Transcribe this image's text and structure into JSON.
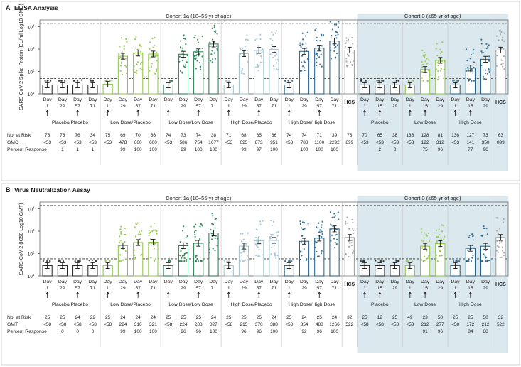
{
  "figure": {
    "border_color": "#d9d9d9",
    "cohort3_shade": "#dbe8ee",
    "cohort1_shade": "#eef4f7"
  },
  "chart_data": [
    {
      "type": "bar",
      "panel_letter": "A",
      "title": "ELISA Analysis",
      "ylabel": "SARS-CoV-2 Spike Protein (EU/ml Log10 GMC)",
      "yscale": "log",
      "ylim": [
        10,
        20000
      ],
      "yticks": [
        {
          "v": 10,
          "label": "10"
        },
        {
          "v": 100,
          "label": "10"
        },
        {
          "v": 1000,
          "label": "10"
        },
        {
          "v": 10000,
          "label": "10"
        }
      ],
      "ytick_exp": [
        "1",
        "2",
        "3",
        "4"
      ],
      "ref_lines": [
        14000,
        48
      ],
      "cohorts": [
        {
          "label": "Cohort 1a (18–55 yr of age)",
          "from": 0,
          "to": 20
        },
        {
          "label": "Cohort 3 (≥65 yr of age)",
          "from": 21,
          "to": 30
        }
      ],
      "groups": [
        {
          "label": "Placebo/Placebo",
          "from": 0,
          "to": 3,
          "color": "#222222",
          "fill": "#ffffff"
        },
        {
          "label": "Low Dose/Placebo",
          "from": 4,
          "to": 7,
          "color": "#8cc63f",
          "fill": "#ffffff"
        },
        {
          "label": "Low Dose/Low Dose",
          "from": 8,
          "to": 11,
          "color": "#1b7a4a",
          "fill": "#ffffff"
        },
        {
          "label": "High Dose/Placebo",
          "from": 12,
          "to": 15,
          "color": "#9dbfcf",
          "fill": "#ffffff"
        },
        {
          "label": "High Dose/High Dose",
          "from": 16,
          "to": 19,
          "color": "#1a5e86",
          "fill": "#ffffff"
        },
        {
          "label": "",
          "from": 20,
          "to": 20,
          "color": "#9a9a9a",
          "fill": "#ffffff"
        },
        {
          "label": "Placebo",
          "from": 21,
          "to": 23,
          "color": "#222222",
          "fill": "#ffffff"
        },
        {
          "label": "Low Dose",
          "from": 24,
          "to": 26,
          "color": "#8cc63f",
          "fill": "#ffffff"
        },
        {
          "label": "High Dose",
          "from": 27,
          "to": 29,
          "color": "#1a5e86",
          "fill": "#ffffff"
        },
        {
          "label": "",
          "from": 30,
          "to": 30,
          "color": "#9a9a9a",
          "fill": "#ffffff"
        }
      ],
      "x_day_word": "Day",
      "categories": [
        "1",
        "29",
        "57",
        "71",
        "1",
        "29",
        "57",
        "71",
        "1",
        "29",
        "57",
        "71",
        "1",
        "29",
        "57",
        "71",
        "1",
        "29",
        "57",
        "71",
        "HCS",
        "1",
        "15",
        "29",
        "1",
        "15",
        "29",
        "1",
        "15",
        "29",
        "HCS"
      ],
      "arrows": [
        0,
        2,
        4,
        6,
        8,
        10,
        12,
        14,
        16,
        18,
        21,
        22,
        24,
        25,
        27,
        28
      ],
      "values": [
        25,
        25,
        25,
        25,
        27,
        478,
        660,
        600,
        25,
        586,
        754,
        1677,
        25,
        625,
        873,
        951,
        25,
        788,
        1100,
        2292,
        899,
        25,
        25,
        25,
        25,
        122,
        312,
        25,
        141,
        350,
        899
      ],
      "row_labels": [
        "No. at Risk",
        "GMC",
        "Percent Response"
      ],
      "at_risk": [
        "76",
        "73",
        "76",
        "34",
        "75",
        "69",
        "70",
        "36",
        "74",
        "73",
        "74",
        "38",
        "71",
        "68",
        "65",
        "36",
        "74",
        "74",
        "71",
        "39",
        "76",
        "70",
        "65",
        "38",
        "136",
        "128",
        "81",
        "136",
        "127",
        "73",
        "63"
      ],
      "gmc": [
        "<53",
        "<53",
        "<53",
        "<53",
        "<53",
        "478",
        "660",
        "600",
        "<53",
        "586",
        "754",
        "1677",
        "<53",
        "625",
        "873",
        "951",
        "<53",
        "788",
        "1100",
        "2292",
        "899",
        "<53",
        "<53",
        "<53",
        "<53",
        "122",
        "312",
        "<53",
        "141",
        "350",
        "899"
      ],
      "percent_response": [
        "",
        "1",
        "1",
        "1",
        "",
        "99",
        "100",
        "100",
        "",
        "99",
        "100",
        "100",
        "",
        "99",
        "97",
        "100",
        "",
        "100",
        "100",
        "100",
        "",
        "",
        "2",
        "0",
        "",
        "75",
        "96",
        "",
        "77",
        "96",
        ""
      ]
    },
    {
      "type": "bar",
      "panel_letter": "B",
      "title": "Virus Neutralization Assay",
      "ylabel": "SARS-CoV-2 (IC50 Log10 GMT)",
      "yscale": "log",
      "ylim": [
        10,
        20000
      ],
      "yticks": [
        {
          "v": 10,
          "label": "10"
        },
        {
          "v": 100,
          "label": "10"
        },
        {
          "v": 1000,
          "label": "10"
        },
        {
          "v": 10000,
          "label": "10"
        }
      ],
      "ytick_exp": [
        "1",
        "2",
        "3",
        "4"
      ],
      "ref_lines": [
        14000,
        58
      ],
      "cohorts": [
        {
          "label": "Cohort 1a (18–55 yr of age)",
          "from": 0,
          "to": 20
        },
        {
          "label": "Cohort 3 (≥65 yr of age)",
          "from": 21,
          "to": 30
        }
      ],
      "groups": [
        {
          "label": "Placebo/Placebo",
          "from": 0,
          "to": 3,
          "color": "#222222",
          "fill": "#ffffff"
        },
        {
          "label": "Low Dose/Placebo",
          "from": 4,
          "to": 7,
          "color": "#8cc63f",
          "fill": "#ffffff"
        },
        {
          "label": "Low Dose/Low Dose",
          "from": 8,
          "to": 11,
          "color": "#1b7a4a",
          "fill": "#ffffff"
        },
        {
          "label": "High Dose/Placebo",
          "from": 12,
          "to": 15,
          "color": "#9dbfcf",
          "fill": "#ffffff"
        },
        {
          "label": "High Dose/High Dose",
          "from": 16,
          "to": 19,
          "color": "#1a5e86",
          "fill": "#ffffff"
        },
        {
          "label": "",
          "from": 20,
          "to": 20,
          "color": "#9a9a9a",
          "fill": "#ffffff"
        },
        {
          "label": "Placebo",
          "from": 21,
          "to": 23,
          "color": "#222222",
          "fill": "#ffffff"
        },
        {
          "label": "Low Dose",
          "from": 24,
          "to": 26,
          "color": "#8cc63f",
          "fill": "#ffffff"
        },
        {
          "label": "High Dose",
          "from": 27,
          "to": 29,
          "color": "#1a5e86",
          "fill": "#ffffff"
        },
        {
          "label": "",
          "from": 30,
          "to": 30,
          "color": "#9a9a9a",
          "fill": "#ffffff"
        }
      ],
      "x_day_word": "Day",
      "categories": [
        "1",
        "29",
        "57",
        "71",
        "1",
        "29",
        "57",
        "71",
        "1",
        "29",
        "57",
        "71",
        "1",
        "29",
        "57",
        "71",
        "1",
        "29",
        "57",
        "71",
        "HCS",
        "1",
        "15",
        "29",
        "1",
        "15",
        "29",
        "1",
        "15",
        "29",
        "HCS"
      ],
      "arrows": [
        0,
        2,
        4,
        6,
        8,
        10,
        12,
        14,
        16,
        18,
        21,
        22,
        24,
        25,
        27,
        28
      ],
      "values": [
        29,
        29,
        29,
        29,
        29,
        224,
        310,
        321,
        29,
        224,
        288,
        827,
        29,
        215,
        370,
        388,
        29,
        354,
        488,
        1266,
        522,
        29,
        29,
        29,
        29,
        212,
        277,
        29,
        172,
        212,
        522
      ],
      "row_labels": [
        "No. at Risk",
        "GMT",
        "Percent Response"
      ],
      "at_risk": [
        "25",
        "25",
        "24",
        "22",
        "25",
        "24",
        "24",
        "24",
        "25",
        "25",
        "25",
        "24",
        "25",
        "25",
        "25",
        "24",
        "25",
        "24",
        "25",
        "24",
        "32",
        "25",
        "12",
        "25",
        "49",
        "23",
        "50",
        "25",
        "25",
        "50",
        "32"
      ],
      "gmt": [
        "<58",
        "<58",
        "<58",
        "<58",
        "<58",
        "224",
        "310",
        "321",
        "<58",
        "224",
        "288",
        "827",
        "<58",
        "215",
        "370",
        "388",
        "<58",
        "354",
        "488",
        "1266",
        "522",
        "<58",
        "<58",
        "<58",
        "<58",
        "212",
        "277",
        "<58",
        "172",
        "212",
        "522"
      ],
      "percent_response": [
        "",
        "0",
        "0",
        "0",
        "",
        "99",
        "100",
        "100",
        "",
        "96",
        "96",
        "100",
        "",
        "96",
        "96",
        "100",
        "",
        "92",
        "96",
        "100",
        "",
        "",
        "",
        "",
        "",
        "91",
        "96",
        "",
        "84",
        "88",
        ""
      ]
    }
  ]
}
